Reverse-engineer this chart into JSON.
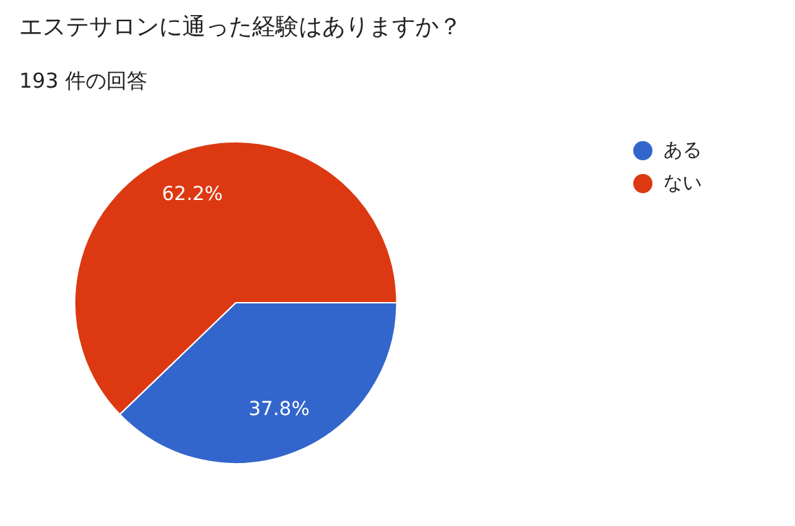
{
  "chart_data": {
    "type": "pie",
    "title": "エステサロンに通った経験はありますか？",
    "subtitle": "193 件の回答",
    "categories": [
      "ある",
      "ない"
    ],
    "values": [
      37.8,
      62.2
    ],
    "colors": [
      "#3366cc",
      "#dc3912"
    ],
    "value_labels": [
      "37.8%",
      "62.2%"
    ],
    "legend": "top right"
  }
}
